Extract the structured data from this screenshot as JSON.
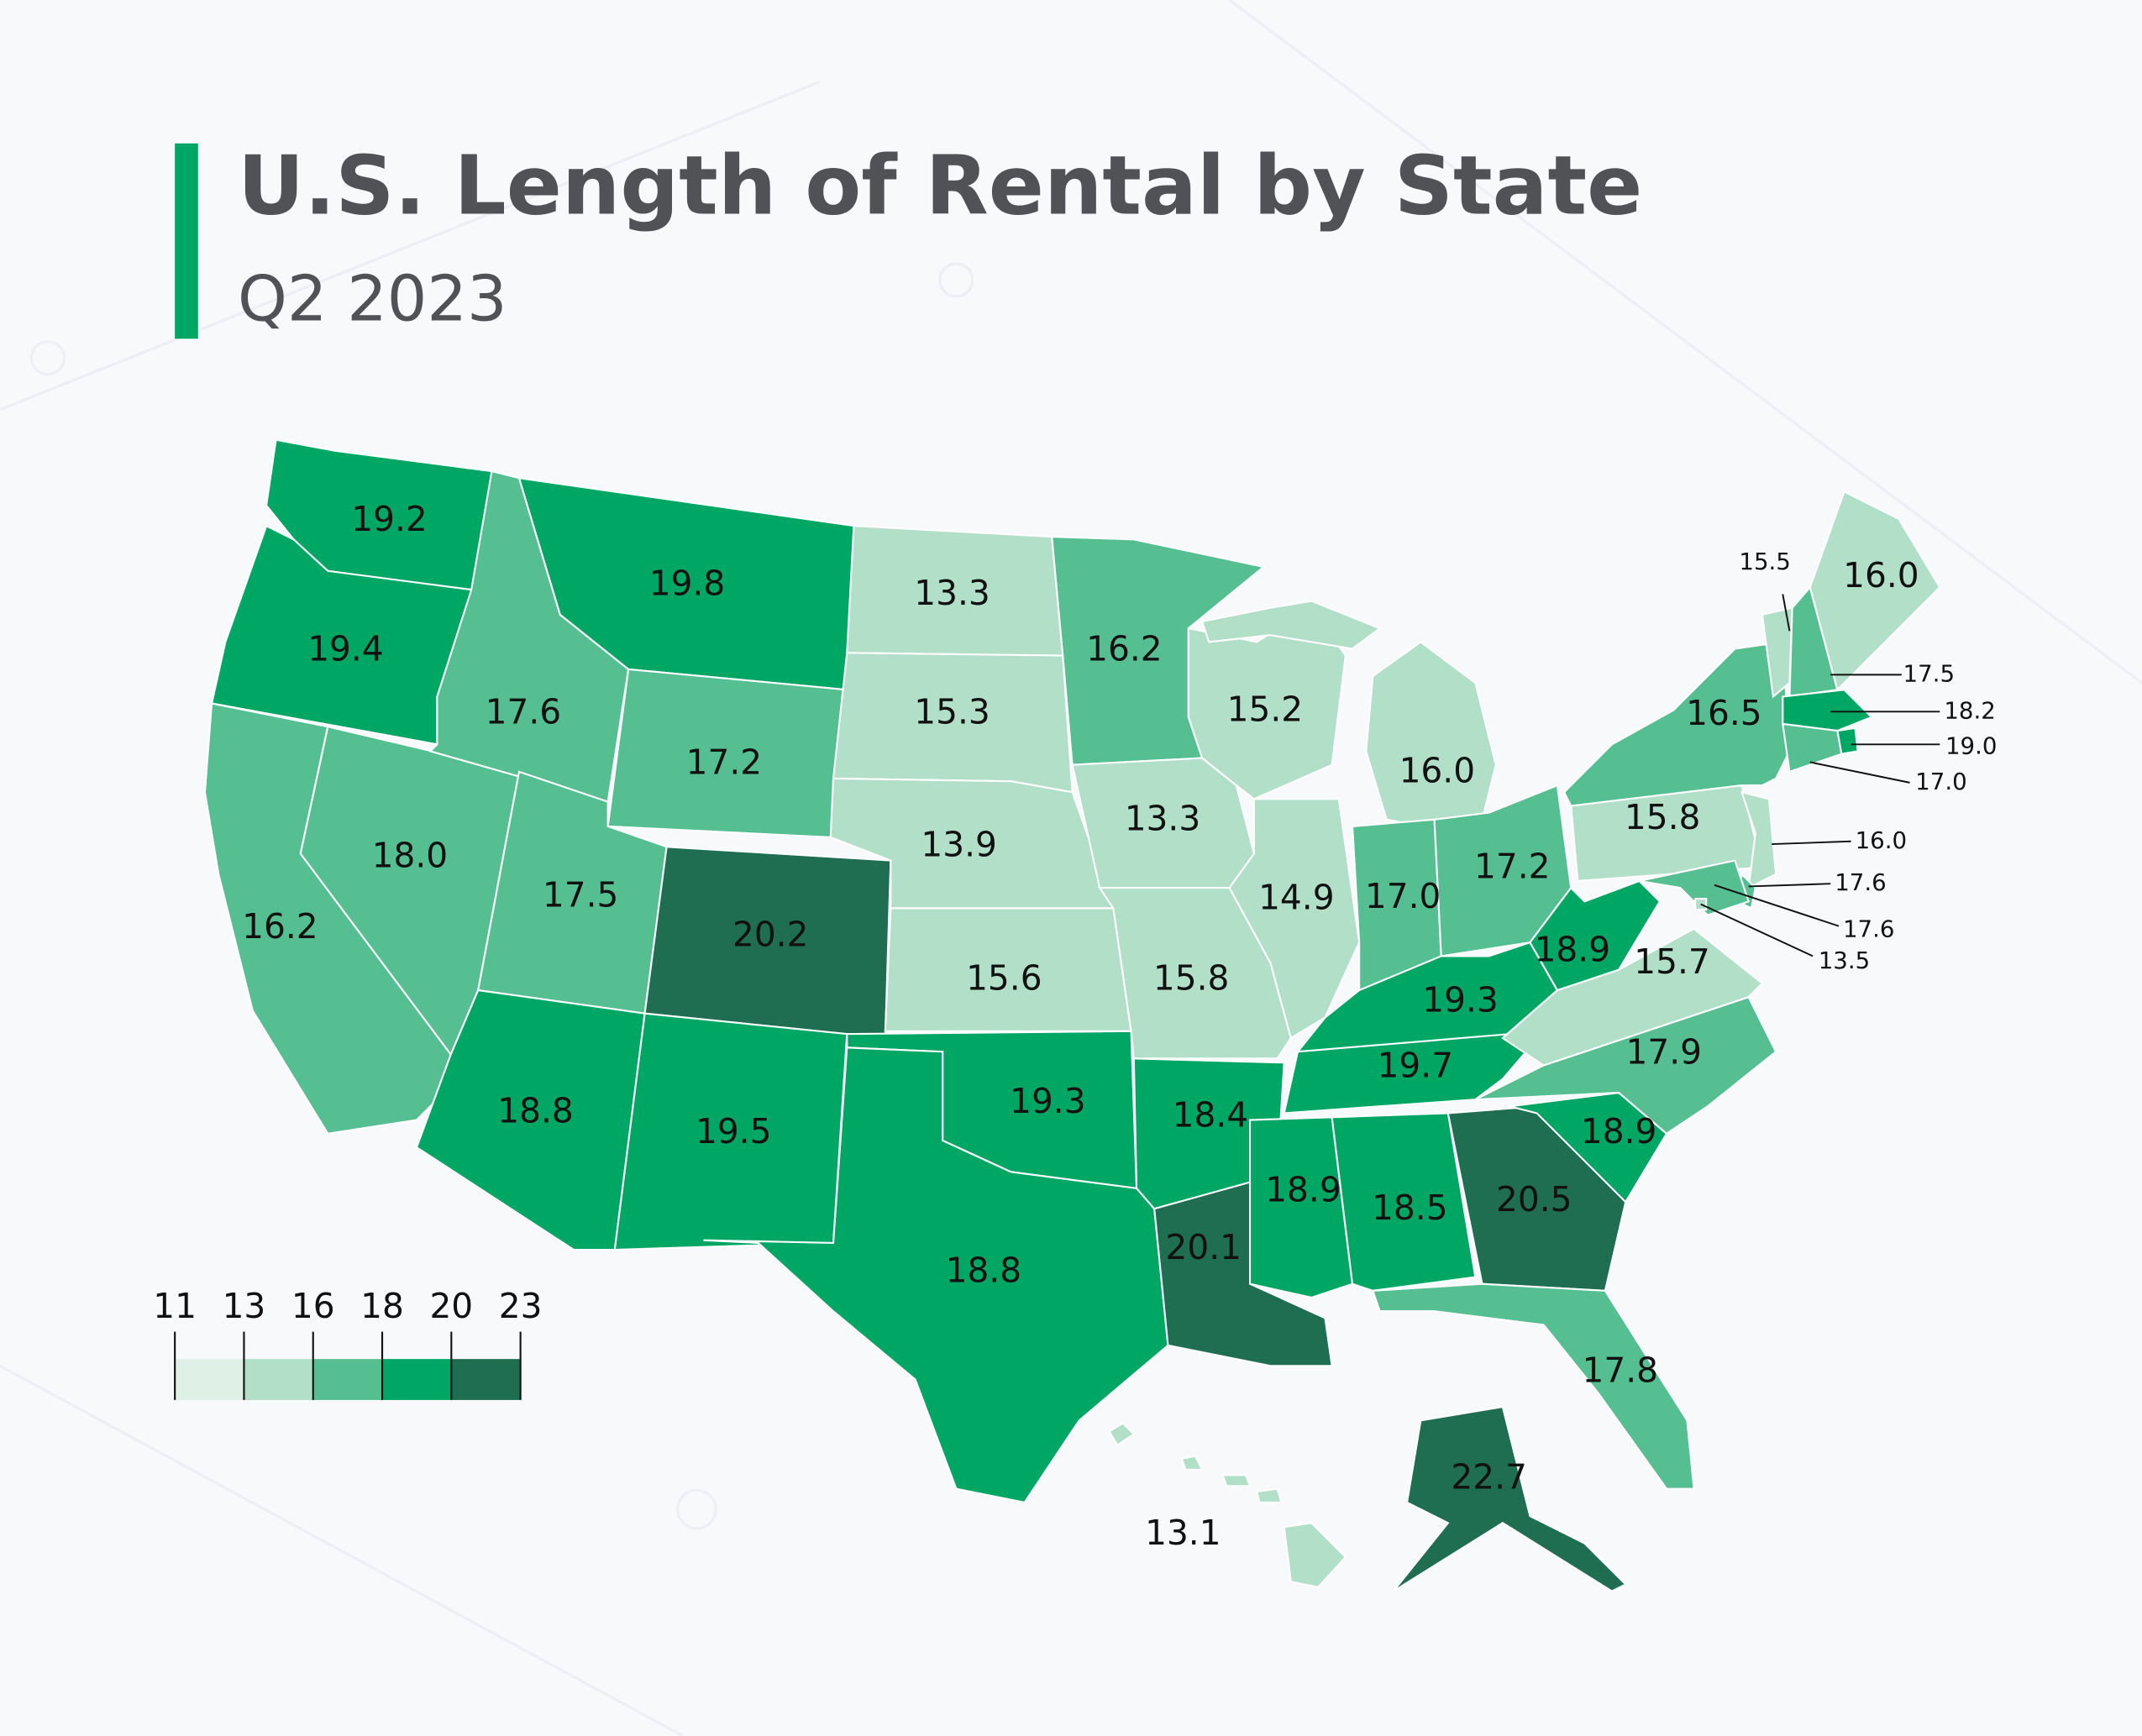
{
  "chart_data": {
    "type": "choropleth",
    "title": "U.S. Length of Rental by State",
    "subtitle": "Q2 2023",
    "values": [
      19.2,
      19.4,
      16.2,
      18.0,
      17.6,
      19.8,
      17.2,
      17.5,
      20.2,
      18.8,
      19.5,
      13.3,
      15.3,
      13.9,
      15.6,
      19.3,
      18.8,
      16.2,
      13.3,
      15.8,
      18.4,
      20.1,
      15.2,
      14.9,
      16.0,
      17.0,
      17.2,
      19.3,
      19.7,
      18.9,
      18.5,
      20.5,
      17.8,
      18.9,
      17.9,
      15.7,
      18.9,
      15.8,
      16.5,
      15.5,
      17.5,
      16.0,
      18.2,
      19.0,
      17.0,
      16.0,
      17.6,
      17.6,
      13.5,
      22.7,
      13.1
    ],
    "value_labels": [
      "19.2",
      "19.4",
      "16.2",
      "18.0",
      "17.6",
      "19.8",
      "17.2",
      "17.5",
      "20.2",
      "18.8",
      "19.5",
      "13.3",
      "15.3",
      "13.9",
      "15.6",
      "19.3",
      "18.8",
      "16.2",
      "13.3",
      "15.8",
      "18.4",
      "20.1",
      "15.2",
      "14.9",
      "16.0",
      "17.0",
      "17.2",
      "19.3",
      "19.7",
      "18.9",
      "18.5",
      "20.5",
      "17.8",
      "18.9",
      "17.9",
      "15.7",
      "18.9",
      "15.8",
      "16.5",
      "15.5",
      "17.5",
      "16.0",
      "18.2",
      "19.0",
      "17.0",
      "16.0",
      "17.6",
      "17.6",
      "13.5",
      "22.7",
      "13.1"
    ],
    "legend": {
      "breaks": [
        11,
        13,
        16,
        18,
        20,
        23
      ],
      "colors": [
        "#dff0e7",
        "#b2dfc8",
        "#55bf91",
        "#00a664",
        "#1f6e52"
      ]
    }
  }
}
